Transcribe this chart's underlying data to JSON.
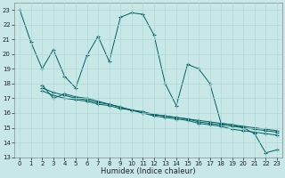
{
  "title": "",
  "xlabel": "Humidex (Indice chaleur)",
  "xlim": [
    -0.5,
    23.5
  ],
  "ylim": [
    13,
    23.5
  ],
  "yticks": [
    13,
    14,
    15,
    16,
    17,
    18,
    19,
    20,
    21,
    22,
    23
  ],
  "xticks": [
    0,
    1,
    2,
    3,
    4,
    5,
    6,
    7,
    8,
    9,
    10,
    11,
    12,
    13,
    14,
    15,
    16,
    17,
    18,
    19,
    20,
    21,
    22,
    23
  ],
  "bg_color": "#c8e8e8",
  "grid_color": "#b0d8d8",
  "line_color": "#006060",
  "line1_x": [
    0,
    1,
    2,
    3,
    4,
    5,
    6,
    7,
    8,
    9,
    10,
    11,
    12,
    13,
    14,
    15,
    16,
    17,
    18,
    19,
    20,
    21,
    22,
    23
  ],
  "line1_y": [
    23.0,
    20.8,
    19.0,
    20.3,
    18.5,
    17.7,
    19.9,
    21.2,
    19.5,
    22.5,
    22.8,
    22.7,
    21.3,
    18.0,
    16.5,
    19.3,
    19.0,
    18.0,
    15.3,
    15.2,
    15.0,
    14.6,
    13.3,
    13.5
  ],
  "line2_x": [
    2,
    3,
    4,
    5,
    6,
    7,
    8,
    9,
    10,
    11,
    12,
    13,
    14,
    15,
    16,
    17,
    18,
    19,
    20,
    21,
    22,
    23
  ],
  "line2_y": [
    17.5,
    17.2,
    17.0,
    16.9,
    16.8,
    16.6,
    16.5,
    16.3,
    16.2,
    16.0,
    15.9,
    15.8,
    15.7,
    15.6,
    15.5,
    15.4,
    15.3,
    15.2,
    15.1,
    15.0,
    14.9,
    14.8
  ],
  "line3_x": [
    2,
    3,
    4,
    5,
    6,
    7,
    8,
    9,
    10,
    11,
    12,
    13,
    14,
    15,
    16,
    17,
    18,
    19,
    20,
    21,
    22,
    23
  ],
  "line3_y": [
    17.7,
    17.4,
    17.2,
    17.0,
    16.9,
    16.7,
    16.6,
    16.4,
    16.2,
    16.1,
    15.9,
    15.8,
    15.7,
    15.6,
    15.4,
    15.3,
    15.2,
    15.1,
    15.0,
    14.9,
    14.8,
    14.7
  ],
  "line4_x": [
    2,
    3,
    4,
    5,
    6,
    7,
    8,
    9,
    10,
    11,
    12,
    13,
    14,
    15,
    16,
    17,
    18,
    19,
    20,
    21,
    22,
    23
  ],
  "line4_y": [
    17.9,
    17.0,
    17.3,
    17.1,
    17.0,
    16.8,
    16.6,
    16.4,
    16.2,
    16.0,
    15.8,
    15.7,
    15.6,
    15.5,
    15.3,
    15.2,
    15.1,
    14.9,
    14.8,
    14.7,
    14.6,
    14.5
  ]
}
